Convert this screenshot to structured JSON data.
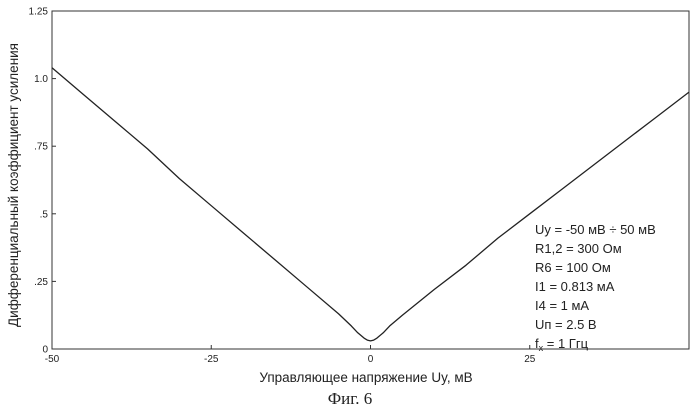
{
  "chart_data": {
    "type": "line",
    "title": "",
    "xlabel": "Управляющее напряжение Uy, мВ",
    "ylabel": "Дифференциальный коэффициент усиления",
    "xlim": [
      -50,
      50
    ],
    "ylim": [
      0,
      1.25
    ],
    "x_ticks": [
      -50,
      -25,
      0,
      25
    ],
    "x_tick_labels": [
      "-50",
      "-25",
      "0",
      "25"
    ],
    "y_ticks": [
      0,
      0.25,
      0.5,
      0.75,
      1.0,
      1.25
    ],
    "y_tick_labels": [
      "0",
      ".25",
      ".5",
      ".75",
      "1.0",
      "1.25"
    ],
    "grid": false,
    "legend": null,
    "series": [
      {
        "color": "#222222",
        "x": [
          -50,
          -45,
          -40,
          -35,
          -30,
          -25,
          -20,
          -15,
          -10,
          -5,
          -3,
          -2,
          -1,
          -0.5,
          0,
          0.5,
          1,
          2,
          3,
          5,
          10,
          15,
          20,
          25,
          30,
          35,
          40,
          45,
          50
        ],
        "y": [
          1.04,
          0.94,
          0.84,
          0.74,
          0.63,
          0.53,
          0.43,
          0.33,
          0.23,
          0.13,
          0.085,
          0.06,
          0.04,
          0.033,
          0.03,
          0.033,
          0.04,
          0.06,
          0.085,
          0.125,
          0.22,
          0.31,
          0.41,
          0.5,
          0.59,
          0.68,
          0.77,
          0.86,
          0.95
        ]
      }
    ],
    "annotations": [
      "Uy = -50 мВ ÷ 50 мВ",
      "R1,2 = 300 Ом",
      "R6 = 100 Ом",
      "I1 = 0.813 мА",
      "I4 = 1 мА",
      "Uп = 2.5 В",
      "fx = 1 Ггц"
    ]
  },
  "caption": "Фиг. 6"
}
